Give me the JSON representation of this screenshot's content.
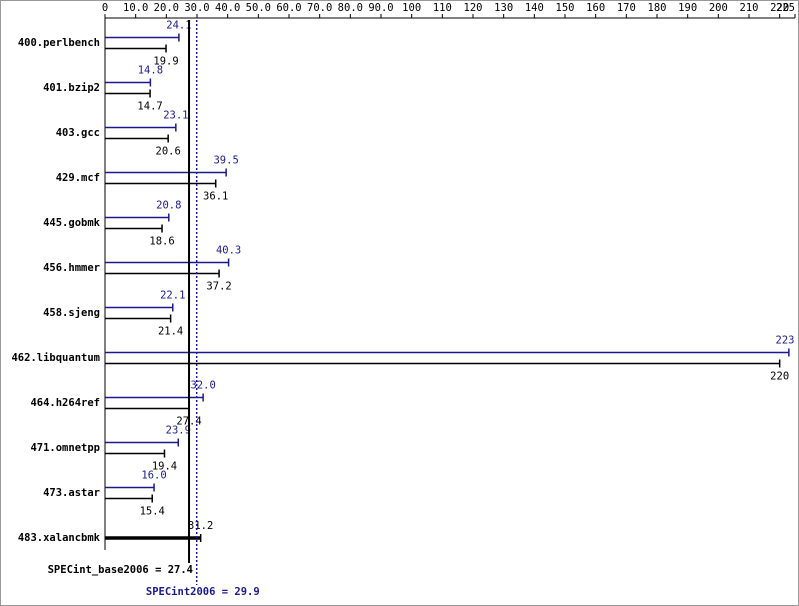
{
  "chart_data": {
    "type": "hbar",
    "categories": [
      "400.perlbench",
      "401.bzip2",
      "403.gcc",
      "429.mcf",
      "445.gobmk",
      "456.hmmer",
      "458.sjeng",
      "462.libquantum",
      "464.h264ref",
      "471.omnetpp",
      "473.astar",
      "483.xalancbmk"
    ],
    "series": [
      {
        "color": "#1a1a8c",
        "values": [
          24.1,
          14.8,
          23.1,
          39.5,
          20.8,
          40.3,
          22.1,
          223,
          32.0,
          23.9,
          16.0,
          null
        ],
        "value_labels": [
          "24.1",
          "14.8",
          "23.1",
          "39.5",
          "20.8",
          "40.3",
          "22.1",
          "223",
          "32.0",
          "23.9",
          "16.0",
          null
        ]
      },
      {
        "color": "#000000",
        "values": [
          19.9,
          14.7,
          20.6,
          36.1,
          18.6,
          37.2,
          21.4,
          220,
          27.4,
          19.4,
          15.4,
          31.2
        ],
        "value_labels": [
          "19.9",
          "14.7",
          "20.6",
          "36.1",
          "18.6",
          "37.2",
          "21.4",
          "220",
          "27.4",
          "19.4",
          "15.4",
          "31.2"
        ]
      }
    ],
    "xlim": [
      0,
      225
    ],
    "xticks": [
      0,
      {
        "value": 10,
        "label": "10.0"
      },
      {
        "value": 20,
        "label": "20.0"
      },
      {
        "value": 30,
        "label": "30.0"
      },
      {
        "value": 40,
        "label": "40.0"
      },
      {
        "value": 50,
        "label": "50.0"
      },
      {
        "value": 60,
        "label": "60.0"
      },
      {
        "value": 70,
        "label": "70.0"
      },
      {
        "value": 80,
        "label": "80.0"
      },
      {
        "value": 90,
        "label": "90.0"
      },
      100,
      110,
      120,
      130,
      140,
      150,
      160,
      170,
      180,
      190,
      200,
      210,
      220,
      225
    ],
    "reference_lines": [
      {
        "label": "SPECint_base2006 = 27.4",
        "value": 27.4,
        "color": "#000000",
        "dashed": false
      },
      {
        "label": "SPECint2006 = 29.9",
        "value": 29.9,
        "color": "#1a1a8c",
        "dashed": true
      }
    ]
  }
}
